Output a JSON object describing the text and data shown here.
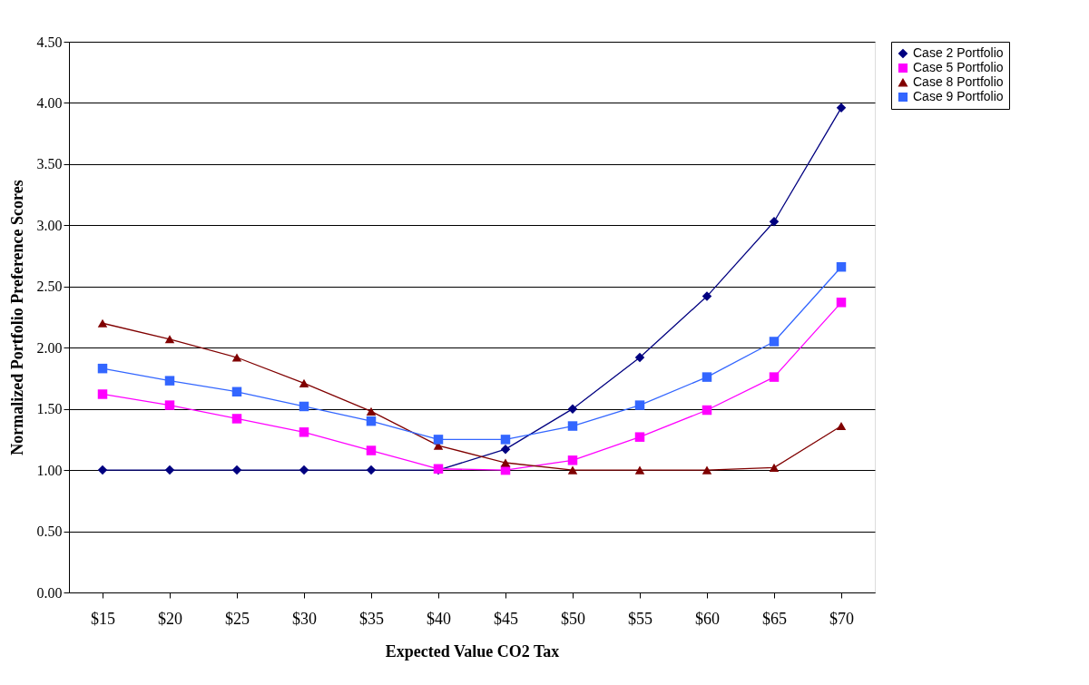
{
  "chart_data": {
    "type": "line",
    "xlabel": "Expected Value CO2 Tax",
    "ylabel": "Normalized Portfolio Preference Scores",
    "categories": [
      "$15",
      "$20",
      "$25",
      "$30",
      "$35",
      "$40",
      "$45",
      "$50",
      "$55",
      "$60",
      "$65",
      "$70"
    ],
    "ylim": [
      0,
      4.5
    ],
    "yticks": [
      {
        "value": 0,
        "label": "0.00"
      },
      {
        "value": 0.5,
        "label": "0.50"
      },
      {
        "value": 1,
        "label": "1.00"
      },
      {
        "value": 1.5,
        "label": "1.50"
      },
      {
        "value": 2,
        "label": "2.00"
      },
      {
        "value": 2.5,
        "label": "2.50"
      },
      {
        "value": 3,
        "label": "3.00"
      },
      {
        "value": 3.5,
        "label": "3.50"
      },
      {
        "value": 4,
        "label": "4.00"
      },
      {
        "value": 4.5,
        "label": "4.50"
      }
    ],
    "grid": "y",
    "legend": "right",
    "line_style": "solid",
    "series": [
      {
        "name": "Case 2 Portfolio",
        "color": "#000080",
        "marker": "diamond",
        "values": [
          1.0,
          1.0,
          1.0,
          1.0,
          1.0,
          1.0,
          1.17,
          1.5,
          1.92,
          2.42,
          3.03,
          3.96
        ]
      },
      {
        "name": "Case 5 Portfolio",
        "color": "#ff00ff",
        "marker": "square",
        "values": [
          1.62,
          1.53,
          1.42,
          1.31,
          1.16,
          1.01,
          1.0,
          1.08,
          1.27,
          1.49,
          1.76,
          2.37
        ]
      },
      {
        "name": "Case 8 Portfolio",
        "color": "#800000",
        "marker": "triangle",
        "values": [
          2.2,
          2.07,
          1.92,
          1.71,
          1.48,
          1.2,
          1.06,
          1.0,
          1.0,
          1.0,
          1.02,
          1.36
        ]
      },
      {
        "name": "Case 9 Portfolio",
        "color": "#3366ff",
        "marker": "square",
        "values": [
          1.83,
          1.73,
          1.64,
          1.52,
          1.4,
          1.25,
          1.25,
          1.36,
          1.53,
          1.76,
          2.05,
          2.66
        ]
      }
    ]
  }
}
